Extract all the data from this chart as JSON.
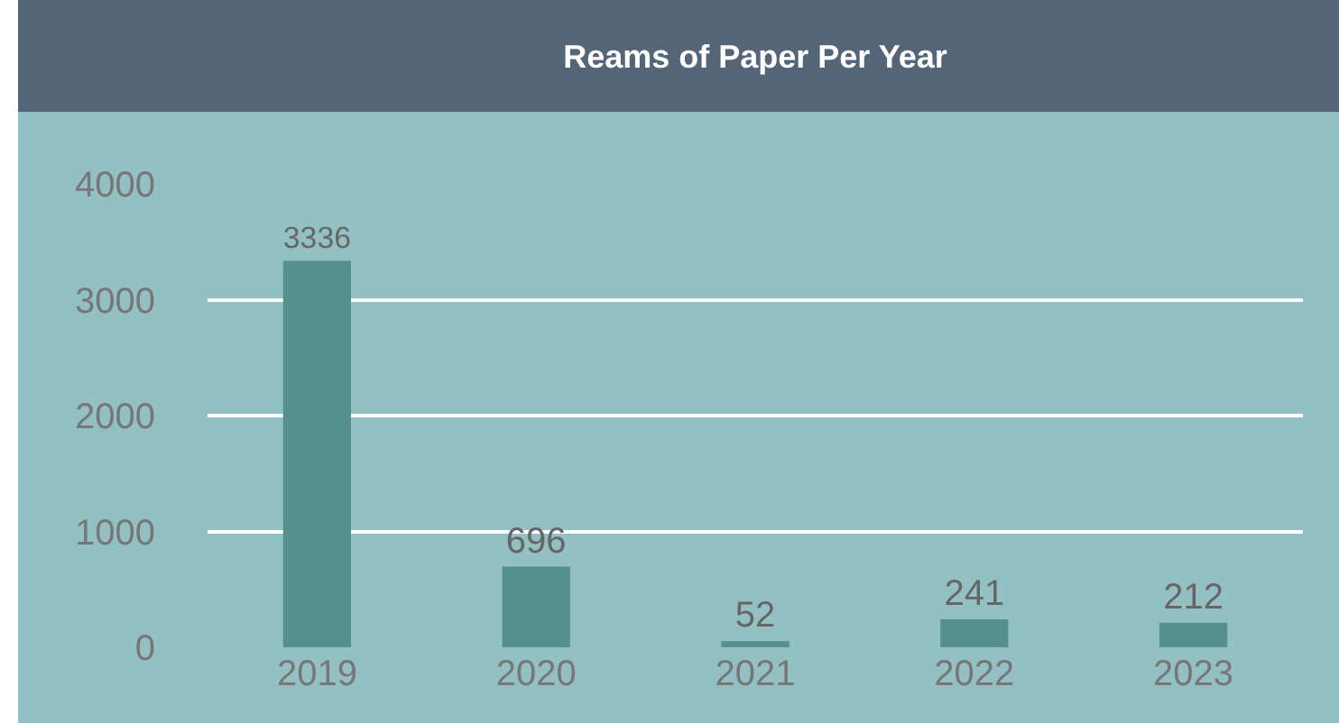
{
  "chart_data": {
    "type": "bar",
    "title": "Reams of Paper Per Year",
    "categories": [
      "2019",
      "2020",
      "2021",
      "2022",
      "2023"
    ],
    "values": [
      3336,
      696,
      52,
      241,
      212
    ],
    "color": "#55908f",
    "ylim": [
      0,
      4000
    ],
    "yticks": [
      0,
      1000,
      2000,
      3000,
      4000
    ],
    "grid": "y",
    "data_labels": true,
    "legend": false
  }
}
